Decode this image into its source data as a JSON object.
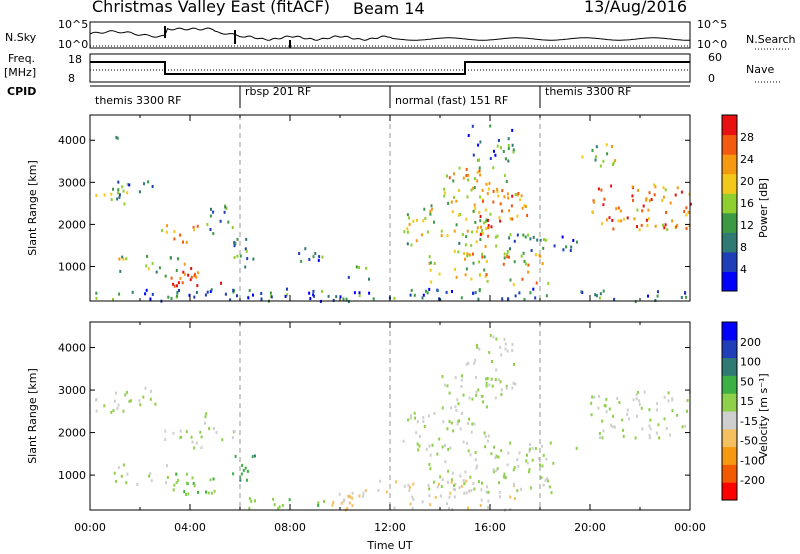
{
  "header": {
    "title": "Christmas Valley East (fitACF)",
    "beam": "Beam 14",
    "date": "13/Aug/2016"
  },
  "top_panels": {
    "nsky_label": "N.Sky",
    "nsearch_label": "N.Search",
    "nsky_ticks": [
      "10^5",
      "10^0"
    ],
    "nsky_right_ticks": [
      "10^5",
      "10^0"
    ],
    "freq_label": "Freq.",
    "freq_unit": "[MHz]",
    "freq_ticks": [
      "18",
      "8"
    ],
    "nave_label": "Nave",
    "nave_ticks": [
      "60",
      "0"
    ],
    "cpid_label": "CPID",
    "cpid_segments": [
      {
        "label": "themis 3300 RF",
        "start_h": 0,
        "end_h": 6
      },
      {
        "label": "rbsp 201 RF",
        "start_h": 6,
        "end_h": 12
      },
      {
        "label": "normal (fast) 151 RF",
        "start_h": 12,
        "end_h": 18
      },
      {
        "label": "themis 3300 RF",
        "start_h": 18,
        "end_h": 24
      }
    ]
  },
  "colors": {
    "power": [
      "#0000ff",
      "#1f3fb8",
      "#2f7a73",
      "#3c9a45",
      "#8fcf30",
      "#f2c81a",
      "#f59a10",
      "#f25a10",
      "#e81010"
    ],
    "velocity": [
      "#ff0000",
      "#f25a00",
      "#f59a10",
      "#f5c060",
      "#cfcfcf",
      "#8fd04a",
      "#3cb043",
      "#2f7a73",
      "#1f3fb8",
      "#0000ff"
    ]
  },
  "chart_data": [
    {
      "type": "heatmap",
      "panel": "power",
      "xlabel": "",
      "ylabel": "Slant Range [km]",
      "xlim_hours": [
        0,
        24
      ],
      "ylim_km": [
        180,
        4600
      ],
      "yticks": [
        1000,
        2000,
        3000,
        4000
      ],
      "dashed_vlines_h": [
        6,
        12,
        18
      ],
      "colorbar": {
        "label": "Power [dB]",
        "ticks": [
          "4",
          "8",
          "12",
          "16",
          "20",
          "24",
          "28"
        ],
        "range": [
          0,
          30
        ]
      },
      "regions": [
        {
          "t0": 0.2,
          "t1": 1.5,
          "r0": 2500,
          "r1": 3200,
          "v": 12
        },
        {
          "t0": 1.0,
          "t1": 2.6,
          "r0": 2800,
          "r1": 3150,
          "v": 10
        },
        {
          "t0": 0.8,
          "t1": 3.5,
          "r0": 800,
          "r1": 1300,
          "v": 14
        },
        {
          "t0": 2.8,
          "t1": 4.5,
          "r0": 1600,
          "r1": 2100,
          "v": 20
        },
        {
          "t0": 3.0,
          "t1": 5.2,
          "r0": 500,
          "r1": 1100,
          "v": 26
        },
        {
          "t0": 4.5,
          "t1": 5.8,
          "r0": 1800,
          "r1": 2500,
          "v": 10
        },
        {
          "t0": 5.6,
          "t1": 6.6,
          "r0": 900,
          "r1": 1700,
          "v": 10
        },
        {
          "t0": 8.3,
          "t1": 9.5,
          "r0": 1000,
          "r1": 1500,
          "v": 8
        },
        {
          "t0": 10.2,
          "t1": 11.2,
          "r0": 700,
          "r1": 1100,
          "v": 8
        },
        {
          "t0": 0.0,
          "t1": 24.0,
          "r0": 200,
          "r1": 500,
          "v": 8
        },
        {
          "t0": 12.5,
          "t1": 16.0,
          "r0": 1500,
          "r1": 2500,
          "v": 16
        },
        {
          "t0": 13.5,
          "t1": 18.5,
          "r0": 600,
          "r1": 1400,
          "v": 18
        },
        {
          "t0": 14.0,
          "t1": 16.8,
          "r0": 2500,
          "r1": 3400,
          "v": 18
        },
        {
          "t0": 15.5,
          "t1": 17.5,
          "r0": 1700,
          "r1": 2900,
          "v": 22
        },
        {
          "t0": 15.0,
          "t1": 17.0,
          "r0": 3500,
          "r1": 4400,
          "v": 8
        },
        {
          "t0": 16.0,
          "t1": 19.5,
          "r0": 1400,
          "r1": 1800,
          "v": 10
        },
        {
          "t0": 20.0,
          "t1": 24.0,
          "r0": 1900,
          "r1": 3000,
          "v": 22
        },
        {
          "t0": 19.5,
          "t1": 21.0,
          "r0": 3400,
          "r1": 4000,
          "v": 14
        },
        {
          "t0": 1.0,
          "t1": 1.6,
          "r0": 4000,
          "r1": 4300,
          "v": 8
        }
      ]
    },
    {
      "type": "heatmap",
      "panel": "velocity",
      "xlabel": "Time UT",
      "ylabel": "Slant Range [km]",
      "xlim_hours": [
        0,
        24
      ],
      "ylim_km": [
        180,
        4600
      ],
      "yticks": [
        1000,
        2000,
        3000,
        4000
      ],
      "xticks": [
        "00:00",
        "04:00",
        "08:00",
        "12:00",
        "16:00",
        "20:00",
        "00:00"
      ],
      "dashed_vlines_h": [
        6,
        12,
        18
      ],
      "colorbar": {
        "label": "Velocity [m s⁻¹]",
        "ticks": [
          "-200",
          "-100",
          "-50",
          "-15",
          "15",
          "50",
          "100",
          "200"
        ],
        "range": [
          -250,
          250
        ]
      },
      "regions": [
        {
          "t0": 0.2,
          "t1": 2.6,
          "r0": 2500,
          "r1": 3200,
          "v": 0
        },
        {
          "t0": 0.8,
          "t1": 3.5,
          "r0": 800,
          "r1": 1300,
          "v": 0
        },
        {
          "t0": 2.8,
          "t1": 4.5,
          "r0": 1600,
          "r1": 2100,
          "v": 0
        },
        {
          "t0": 3.0,
          "t1": 5.0,
          "r0": 500,
          "r1": 1100,
          "v": 30
        },
        {
          "t0": 4.5,
          "t1": 5.8,
          "r0": 1800,
          "r1": 2500,
          "v": 0
        },
        {
          "t0": 5.6,
          "t1": 6.6,
          "r0": 900,
          "r1": 1700,
          "v": 80
        },
        {
          "t0": 6.0,
          "t1": 9.5,
          "r0": 200,
          "r1": 500,
          "v": 30
        },
        {
          "t0": 9.5,
          "t1": 11.5,
          "r0": 200,
          "r1": 700,
          "v": -60
        },
        {
          "t0": 11.5,
          "t1": 17.0,
          "r0": 200,
          "r1": 900,
          "v": -40
        },
        {
          "t0": 12.5,
          "t1": 16.0,
          "r0": 1500,
          "r1": 2500,
          "v": 0
        },
        {
          "t0": 13.5,
          "t1": 18.5,
          "r0": 600,
          "r1": 1400,
          "v": 0
        },
        {
          "t0": 14.0,
          "t1": 17.0,
          "r0": 2500,
          "r1": 3400,
          "v": 0
        },
        {
          "t0": 16.0,
          "t1": 19.5,
          "r0": 1400,
          "r1": 1800,
          "v": 0
        },
        {
          "t0": 20.0,
          "t1": 24.0,
          "r0": 1900,
          "r1": 3000,
          "v": 0
        },
        {
          "t0": 15.0,
          "t1": 17.0,
          "r0": 3500,
          "r1": 4400,
          "v": 0
        }
      ]
    }
  ]
}
